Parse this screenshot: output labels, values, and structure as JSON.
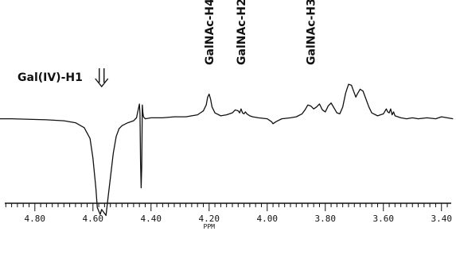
{
  "chart_data": {
    "type": "line",
    "title": "",
    "xlabel": "PPM",
    "ylabel": "",
    "x_reversed": true,
    "xlim": [
      4.92,
      3.35
    ],
    "ylim": [
      -105,
      48
    ],
    "grid": false,
    "legend": "none",
    "line_color": "#111111",
    "ticks": [
      "4.80",
      "4.60",
      "4.40",
      "4.20",
      "4.00",
      "3.80",
      "3.60",
      "3.40"
    ],
    "annotations": [
      {
        "text": "Gal(IV)-H1",
        "x": 4.57,
        "orientation": "horizontal",
        "arrow": true
      },
      {
        "text": "GalNAc-H4",
        "x": 4.2,
        "orientation": "vertical"
      },
      {
        "text": "GalNAc-H2",
        "x": 4.09,
        "orientation": "vertical"
      },
      {
        "text": "GalNAc-H3",
        "x": 3.85,
        "orientation": "vertical"
      }
    ],
    "series": [
      {
        "x": [
          4.93,
          4.88,
          4.82,
          4.76,
          4.7,
          4.66,
          4.63,
          4.61,
          4.6,
          4.59,
          4.585,
          4.575,
          4.57,
          4.565,
          4.555,
          4.55,
          4.54,
          4.53,
          4.52,
          4.51,
          4.5,
          4.48,
          4.46,
          4.45,
          4.445,
          4.44,
          4.438,
          4.436,
          4.434,
          4.432,
          4.43,
          4.428,
          4.426,
          4.42,
          4.4,
          4.36,
          4.32,
          4.28,
          4.24,
          4.22,
          4.21,
          4.205,
          4.2,
          4.195,
          4.19,
          4.18,
          4.16,
          4.14,
          4.12,
          4.11,
          4.1,
          4.095,
          4.09,
          4.085,
          4.08,
          4.075,
          4.07,
          4.06,
          4.05,
          4.03,
          4.0,
          3.985,
          3.98,
          3.97,
          3.95,
          3.92,
          3.9,
          3.88,
          3.87,
          3.86,
          3.85,
          3.84,
          3.83,
          3.82,
          3.81,
          3.8,
          3.79,
          3.78,
          3.77,
          3.76,
          3.75,
          3.74,
          3.73,
          3.72,
          3.71,
          3.7,
          3.695,
          3.69,
          3.68,
          3.67,
          3.66,
          3.65,
          3.64,
          3.62,
          3.6,
          3.59,
          3.585,
          3.58,
          3.575,
          3.57,
          3.565,
          3.56,
          3.55,
          3.54,
          3.52,
          3.5,
          3.48,
          3.45,
          3.42,
          3.4,
          3.38,
          3.36
        ],
        "y": [
          0,
          0,
          -0.5,
          -1,
          -2,
          -4,
          -9,
          -20,
          -40,
          -70,
          -90,
          -97,
          -92,
          -94,
          -98,
          -85,
          -60,
          -35,
          -18,
          -10,
          -7,
          -4,
          -2,
          1,
          8,
          15,
          5,
          -45,
          -70,
          -48,
          14,
          6,
          2,
          0,
          1,
          1,
          2,
          2,
          4,
          8,
          14,
          22,
          25,
          20,
          12,
          6,
          3,
          4,
          6,
          9,
          8,
          6,
          10,
          6,
          5,
          7,
          5,
          3,
          2,
          1,
          0,
          -3,
          -5,
          -3,
          0,
          1,
          2,
          5,
          9,
          14,
          13,
          10,
          12,
          15,
          9,
          7,
          13,
          16,
          11,
          6,
          5,
          12,
          26,
          35,
          34,
          26,
          22,
          25,
          30,
          28,
          20,
          12,
          6,
          3,
          5,
          10,
          7,
          6,
          10,
          4,
          7,
          3,
          2,
          1,
          0,
          1,
          0,
          1,
          0,
          2,
          1,
          0
        ]
      }
    ]
  }
}
